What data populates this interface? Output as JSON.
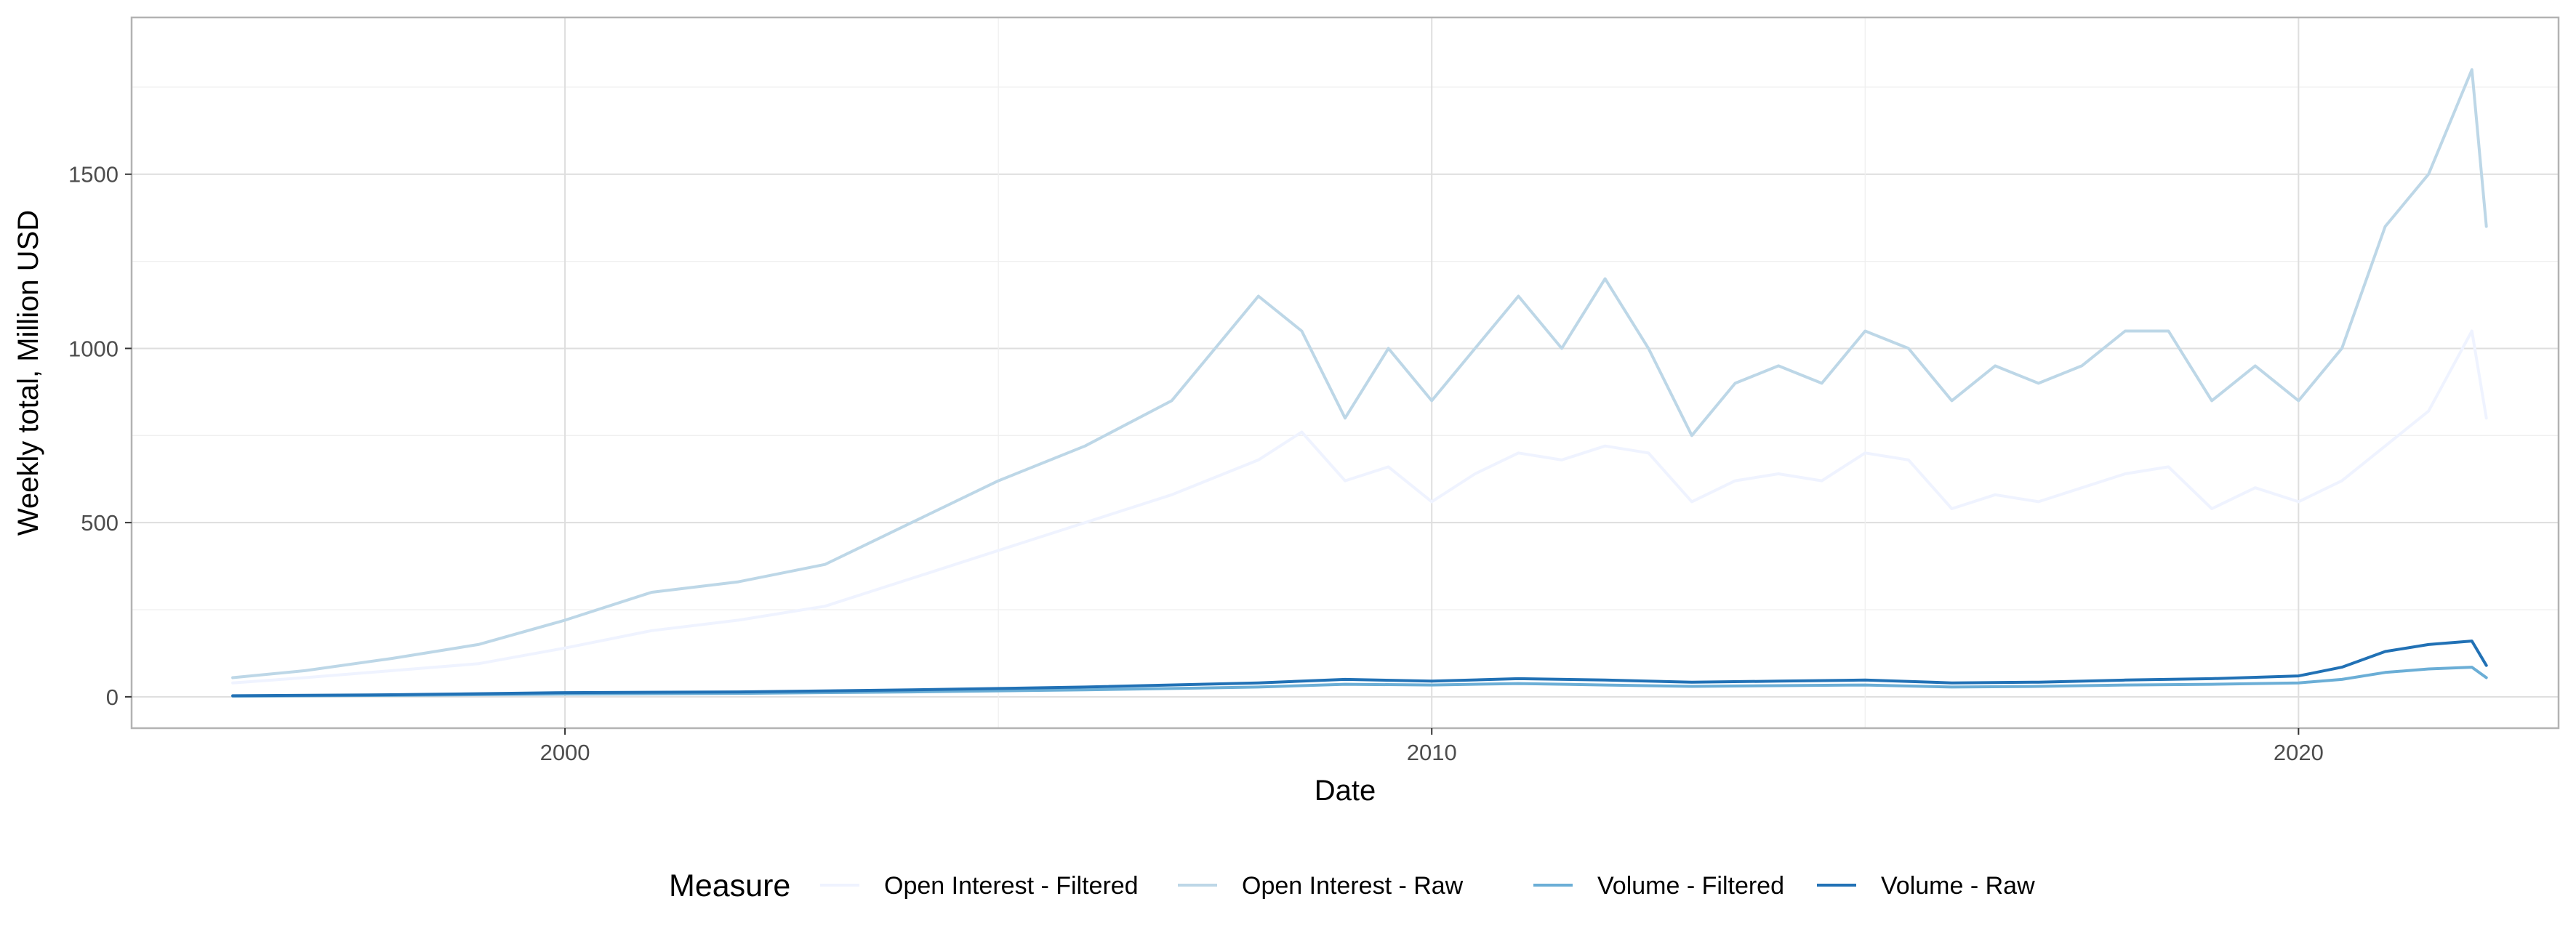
{
  "chart_data": {
    "type": "line",
    "title": "",
    "xlabel": "Date",
    "ylabel": "Weekly total, Million USD",
    "xlim": [
      "1995-01-01",
      "2023-01-01"
    ],
    "ylim": [
      -90,
      1950
    ],
    "x_ticks": [
      "2000",
      "2010",
      "2020"
    ],
    "y_ticks": [
      0,
      500,
      1000,
      1500
    ],
    "grid": true,
    "legend": {
      "title": "Measure",
      "position": "bottom"
    },
    "colors": {
      "Open Interest - Filtered": "#eff3ff",
      "Open Interest - Raw": "#bdd7e7",
      "Volume - Filtered": "#6baed6",
      "Volume - Raw": "#2171b5"
    },
    "series": [
      {
        "name": "Open Interest - Filtered",
        "x": [
          "1996-03",
          "1997-01",
          "1998-01",
          "1999-01",
          "2000-01",
          "2001-01",
          "2002-01",
          "2003-01",
          "2004-01",
          "2005-01",
          "2006-01",
          "2007-01",
          "2008-01",
          "2008-07",
          "2009-01",
          "2009-07",
          "2010-01",
          "2010-07",
          "2011-01",
          "2011-07",
          "2012-01",
          "2012-07",
          "2013-01",
          "2013-07",
          "2014-01",
          "2014-07",
          "2015-01",
          "2015-07",
          "2016-01",
          "2016-07",
          "2017-01",
          "2017-07",
          "2018-01",
          "2018-07",
          "2019-01",
          "2019-07",
          "2020-01",
          "2020-07",
          "2021-01",
          "2021-07",
          "2022-01",
          "2022-03"
        ],
        "y": [
          40,
          55,
          75,
          95,
          140,
          190,
          220,
          260,
          340,
          420,
          500,
          580,
          680,
          760,
          620,
          660,
          560,
          640,
          700,
          680,
          720,
          700,
          560,
          620,
          640,
          620,
          700,
          680,
          540,
          580,
          560,
          600,
          640,
          660,
          540,
          600,
          560,
          620,
          720,
          820,
          1050,
          800
        ]
      },
      {
        "name": "Open Interest - Raw",
        "x": [
          "1996-03",
          "1997-01",
          "1998-01",
          "1999-01",
          "2000-01",
          "2001-01",
          "2002-01",
          "2003-01",
          "2004-01",
          "2005-01",
          "2006-01",
          "2007-01",
          "2008-01",
          "2008-07",
          "2009-01",
          "2009-07",
          "2010-01",
          "2010-07",
          "2011-01",
          "2011-07",
          "2012-01",
          "2012-07",
          "2013-01",
          "2013-07",
          "2014-01",
          "2014-07",
          "2015-01",
          "2015-07",
          "2016-01",
          "2016-07",
          "2017-01",
          "2017-07",
          "2018-01",
          "2018-07",
          "2019-01",
          "2019-07",
          "2020-01",
          "2020-07",
          "2021-01",
          "2021-07",
          "2022-01",
          "2022-03"
        ],
        "y": [
          55,
          75,
          110,
          150,
          220,
          300,
          330,
          380,
          500,
          620,
          720,
          850,
          1150,
          1050,
          800,
          1000,
          850,
          1000,
          1150,
          1000,
          1200,
          1000,
          750,
          900,
          950,
          900,
          1050,
          1000,
          850,
          950,
          900,
          950,
          1050,
          1050,
          850,
          950,
          850,
          1000,
          1350,
          1500,
          1800,
          1350
        ]
      },
      {
        "name": "Volume - Filtered",
        "x": [
          "1996-03",
          "1998-01",
          "2000-01",
          "2002-01",
          "2004-01",
          "2006-01",
          "2008-01",
          "2009-01",
          "2010-01",
          "2011-01",
          "2012-01",
          "2013-01",
          "2014-01",
          "2015-01",
          "2016-01",
          "2017-01",
          "2018-01",
          "2019-01",
          "2020-01",
          "2020-07",
          "2021-01",
          "2021-07",
          "2022-01",
          "2022-03"
        ],
        "y": [
          2,
          4,
          8,
          10,
          14,
          20,
          28,
          36,
          34,
          38,
          34,
          30,
          32,
          34,
          28,
          30,
          34,
          36,
          40,
          50,
          70,
          80,
          85,
          55
        ]
      },
      {
        "name": "Volume - Raw",
        "x": [
          "1996-03",
          "1998-01",
          "2000-01",
          "2002-01",
          "2004-01",
          "2006-01",
          "2008-01",
          "2009-01",
          "2010-01",
          "2011-01",
          "2012-01",
          "2013-01",
          "2014-01",
          "2015-01",
          "2016-01",
          "2017-01",
          "2018-01",
          "2019-01",
          "2020-01",
          "2020-07",
          "2021-01",
          "2021-07",
          "2022-01",
          "2022-03"
        ],
        "y": [
          3,
          6,
          12,
          14,
          20,
          28,
          40,
          50,
          45,
          52,
          48,
          42,
          45,
          48,
          40,
          42,
          48,
          52,
          60,
          85,
          130,
          150,
          160,
          90
        ]
      }
    ]
  }
}
